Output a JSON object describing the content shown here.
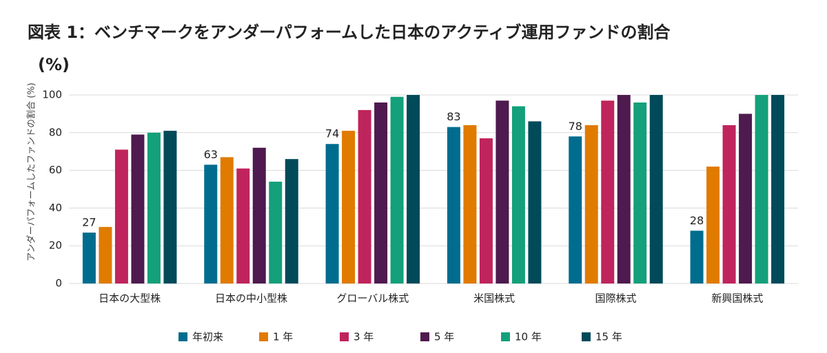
{
  "chart_data": {
    "type": "bar",
    "title": "図表 1：ベンチマークをアンダーパフォームした日本のアクティブ運用ファンドの割合",
    "unit_label": "(%)",
    "y_label": "アンダーパフォームしたファンドの割合 (%)",
    "categories": [
      "日本の大型株",
      "日本の中小型株",
      "グローバル株式",
      "米国株式",
      "国際株式",
      "新興国株式"
    ],
    "series": [
      {
        "name": "年初来",
        "color": "#006d8f",
        "values": [
          27,
          63,
          74,
          83,
          78,
          28
        ],
        "data_labels": true
      },
      {
        "name": "1 年",
        "color": "#e07b00",
        "values": [
          30,
          67,
          81,
          84,
          84,
          62
        ]
      },
      {
        "name": "3 年",
        "color": "#c0245c",
        "values": [
          71,
          61,
          92,
          77,
          97,
          84
        ]
      },
      {
        "name": "5 年",
        "color": "#4e1a4f",
        "values": [
          79,
          72,
          96,
          97,
          100,
          90
        ]
      },
      {
        "name": "10 年",
        "color": "#13a07a",
        "values": [
          80,
          54,
          99,
          94,
          96,
          100
        ]
      },
      {
        "name": "15 年",
        "color": "#004a5a",
        "values": [
          81,
          66,
          100,
          86,
          100,
          100
        ]
      }
    ],
    "ylim": [
      0,
      100
    ],
    "yticks": [
      0,
      20,
      40,
      60,
      80,
      100
    ],
    "grid": true,
    "legend": "bottom"
  }
}
